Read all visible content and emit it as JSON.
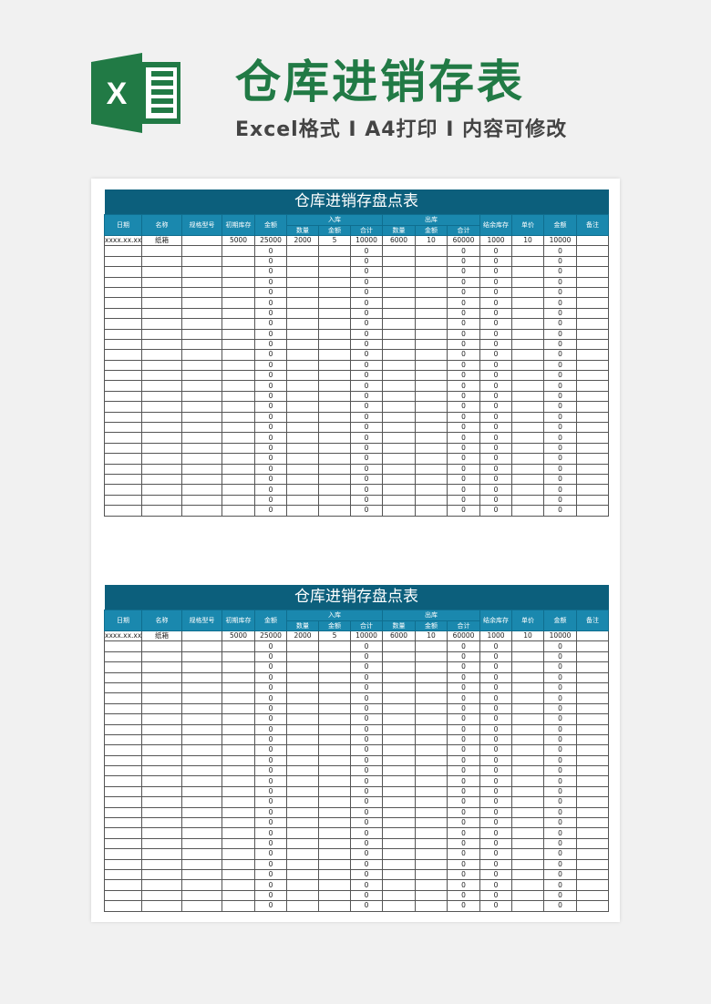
{
  "header": {
    "title": "仓库进销存表",
    "subtitle": "Excel格式 I A4打印 I 内容可修改",
    "logo_letter": "X",
    "brand_color": "#217a45"
  },
  "colors": {
    "title_bg": "#0c5f7c",
    "header_bg": "#1a88ae"
  },
  "tables": [
    {
      "title": "仓库进销存盘点表",
      "headers": [
        "日期",
        "名称",
        "规格型号",
        "初期库存",
        "金额",
        "入库",
        "出库",
        "结余库存",
        "单价",
        "金额",
        "备注"
      ],
      "sub_headers_in": [
        "数量",
        "金额",
        "合计"
      ],
      "sub_headers_out": [
        "数量",
        "金额",
        "合计"
      ],
      "first_row": [
        "xxxx.xx.xx",
        "纸箱",
        "",
        "5000",
        "25000",
        "2000",
        "5",
        "10000",
        "6000",
        "10",
        "60000",
        "1000",
        "10",
        "10000",
        ""
      ],
      "blank_row": [
        "",
        "",
        "",
        "",
        "0",
        "",
        "",
        "0",
        "",
        "",
        "0",
        "0",
        "",
        "0",
        ""
      ],
      "blank_row_count": 26
    },
    {
      "title": "仓库进销存盘点表",
      "headers": [
        "日期",
        "名称",
        "规格型号",
        "初期库存",
        "金额",
        "入库",
        "出库",
        "结余库存",
        "单价",
        "金额",
        "备注"
      ],
      "sub_headers_in": [
        "数量",
        "金额",
        "合计"
      ],
      "sub_headers_out": [
        "数量",
        "金额",
        "合计"
      ],
      "first_row": [
        "xxxx.xx.xx",
        "纸箱",
        "",
        "5000",
        "25000",
        "2000",
        "5",
        "10000",
        "6000",
        "10",
        "60000",
        "1000",
        "10",
        "10000",
        ""
      ],
      "blank_row": [
        "",
        "",
        "",
        "",
        "0",
        "",
        "",
        "0",
        "",
        "",
        "0",
        "0",
        "",
        "0",
        ""
      ],
      "blank_row_count": 26
    }
  ]
}
